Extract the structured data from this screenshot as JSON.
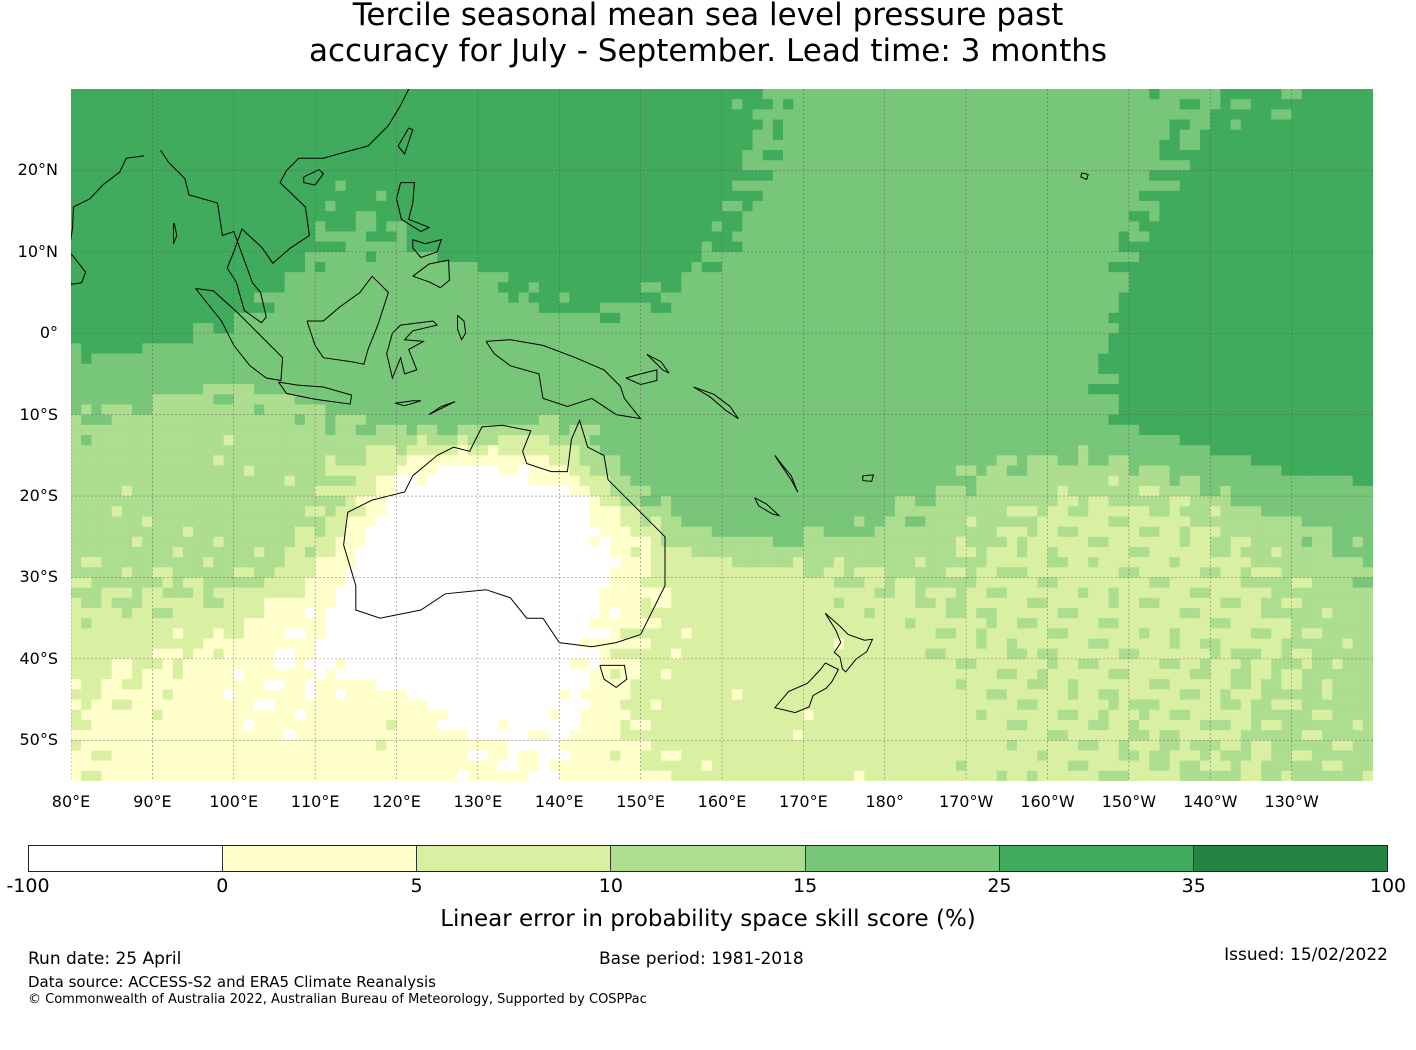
{
  "title": {
    "line1": "Tercile seasonal mean sea level pressure past",
    "line2": "accuracy for July - September. Lead time: 3 months"
  },
  "map": {
    "projection": "equirectangular",
    "lon_range": [
      80,
      240
    ],
    "lat_range": [
      -55,
      30
    ],
    "gridlines": true,
    "lat_labels": [
      {
        "lat": 20,
        "label": "20°N"
      },
      {
        "lat": 10,
        "label": "10°N"
      },
      {
        "lat": 0,
        "label": "0°"
      },
      {
        "lat": -10,
        "label": "10°S"
      },
      {
        "lat": -20,
        "label": "20°S"
      },
      {
        "lat": -30,
        "label": "30°S"
      },
      {
        "lat": -40,
        "label": "40°S"
      },
      {
        "lat": -50,
        "label": "50°S"
      }
    ],
    "lon_labels": [
      {
        "lon": 80,
        "label": "80°E"
      },
      {
        "lon": 90,
        "label": "90°E"
      },
      {
        "lon": 100,
        "label": "100°E"
      },
      {
        "lon": 110,
        "label": "110°E"
      },
      {
        "lon": 120,
        "label": "120°E"
      },
      {
        "lon": 130,
        "label": "130°E"
      },
      {
        "lon": 140,
        "label": "140°E"
      },
      {
        "lon": 150,
        "label": "150°E"
      },
      {
        "lon": 160,
        "label": "160°E"
      },
      {
        "lon": 170,
        "label": "170°E"
      },
      {
        "lon": 180,
        "label": "180°"
      },
      {
        "lon": 190,
        "label": "170°W"
      },
      {
        "lon": 200,
        "label": "160°W"
      },
      {
        "lon": 210,
        "label": "150°W"
      },
      {
        "lon": 220,
        "label": "140°W"
      },
      {
        "lon": 230,
        "label": "130°W"
      }
    ],
    "skill_regions": [
      {
        "name": "northwest-pacific",
        "lon": 138,
        "lat": 15,
        "skill_pct": 30
      },
      {
        "name": "bay-of-bengal",
        "lon": 88,
        "lat": 13,
        "skill_pct": 30
      },
      {
        "name": "maritime-continent",
        "lon": 125,
        "lat": 0,
        "skill_pct": 22
      },
      {
        "name": "equatorial-east-pacific",
        "lon": 225,
        "lat": -2,
        "skill_pct": 32
      },
      {
        "name": "central-pacific",
        "lon": 190,
        "lat": 3,
        "skill_pct": 18
      },
      {
        "name": "coral-sea",
        "lon": 162,
        "lat": -12,
        "skill_pct": 20
      },
      {
        "name": "south-indian-ocean",
        "lon": 100,
        "lat": -20,
        "skill_pct": 12
      },
      {
        "name": "interior-australia",
        "lon": 130,
        "lat": -27,
        "skill_pct": -5
      },
      {
        "name": "great-australian-bight",
        "lon": 125,
        "lat": -42,
        "skill_pct": -5
      },
      {
        "name": "southern-ocean-south-of-australia",
        "lon": 120,
        "lat": -48,
        "skill_pct": 3
      },
      {
        "name": "tasman-sea",
        "lon": 163,
        "lat": -42,
        "skill_pct": 7
      },
      {
        "name": "south-pacific",
        "lon": 210,
        "lat": -30,
        "skill_pct": 9
      }
    ]
  },
  "colorbar": {
    "boundaries": [
      "-100",
      "0",
      "5",
      "10",
      "15",
      "25",
      "35",
      "100"
    ],
    "colors": [
      "#ffffff",
      "#ffffcc",
      "#d9f0a3",
      "#addd8e",
      "#78c679",
      "#41ab5d",
      "#238443"
    ],
    "label": "Linear error in probability space skill score (%)"
  },
  "footer": {
    "run_date": "Run date: 25 April",
    "base_period": "Base period: 1981-2018",
    "issued": "Issued: 15/02/2022",
    "data_source": "Data source: ACCESS-S2 and ERA5 Climate Reanalysis",
    "copyright": "© Commonwealth of Australia 2022, Australian Bureau of Meteorology, Supported by COSPPac"
  }
}
